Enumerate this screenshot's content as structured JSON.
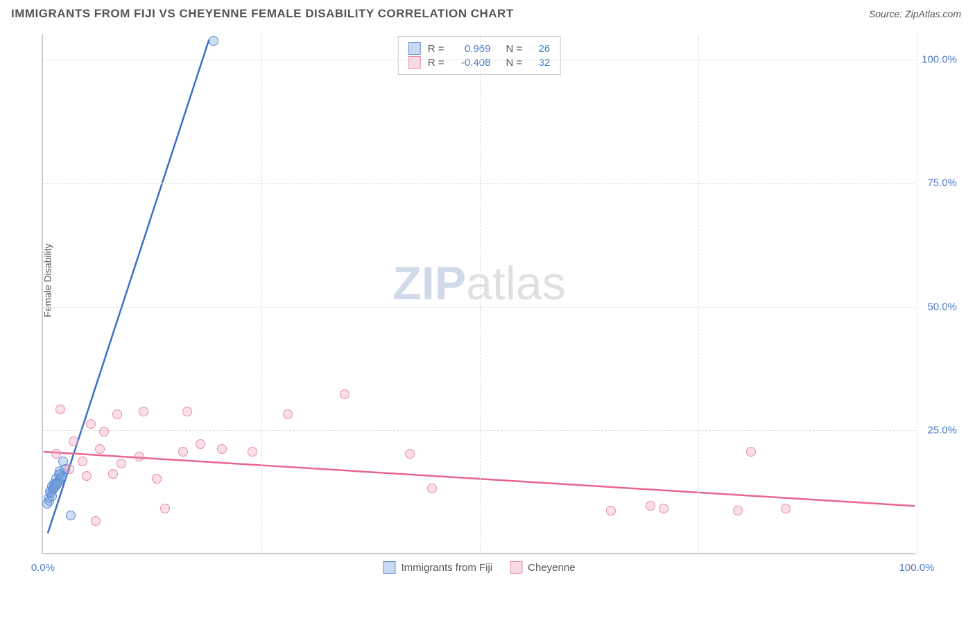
{
  "title": "IMMIGRANTS FROM FIJI VS CHEYENNE FEMALE DISABILITY CORRELATION CHART",
  "source": "Source: ZipAtlas.com",
  "y_axis_label": "Female Disability",
  "watermark_zip": "ZIP",
  "watermark_atlas": "atlas",
  "chart": {
    "type": "scatter",
    "xlim": [
      0,
      100
    ],
    "ylim": [
      0,
      105
    ],
    "x_ticks": [
      {
        "pos": 0,
        "label": "0.0%"
      },
      {
        "pos": 100,
        "label": "100.0%"
      }
    ],
    "x_grid": [
      25,
      50,
      75,
      100
    ],
    "y_ticks": [
      {
        "pos": 25,
        "label": "25.0%"
      },
      {
        "pos": 50,
        "label": "50.0%"
      },
      {
        "pos": 75,
        "label": "75.0%"
      },
      {
        "pos": 100,
        "label": "100.0%"
      }
    ],
    "series": [
      {
        "name": "Immigrants from Fiji",
        "color_fill": "rgba(120,160,220,0.35)",
        "color_stroke": "#5b8dd6",
        "line_color": "#3b6fc4",
        "r": "0.969",
        "n": "26",
        "trend": {
          "x1": 0.5,
          "y1": 4,
          "x2": 19,
          "y2": 104
        },
        "points": [
          [
            1.0,
            13.5
          ],
          [
            1.3,
            14.0
          ],
          [
            0.8,
            12.5
          ],
          [
            1.5,
            15.0
          ],
          [
            2.0,
            16.0
          ],
          [
            0.6,
            11.0
          ],
          [
            1.2,
            13.0
          ],
          [
            1.8,
            14.5
          ],
          [
            0.9,
            12.0
          ],
          [
            1.4,
            13.8
          ],
          [
            2.2,
            15.5
          ],
          [
            1.1,
            12.8
          ],
          [
            1.7,
            14.2
          ],
          [
            0.7,
            10.5
          ],
          [
            2.5,
            17.0
          ],
          [
            1.3,
            13.2
          ],
          [
            1.6,
            14.0
          ],
          [
            2.1,
            15.2
          ],
          [
            1.0,
            11.5
          ],
          [
            1.9,
            16.5
          ],
          [
            0.5,
            10.0
          ],
          [
            1.5,
            13.6
          ],
          [
            2.3,
            18.5
          ],
          [
            3.2,
            7.5
          ],
          [
            19.5,
            103.5
          ],
          [
            1.8,
            15.8
          ]
        ]
      },
      {
        "name": "Cheyenne",
        "color_fill": "rgba(235,150,175,0.3)",
        "color_stroke": "#e88ca8",
        "line_color": "#e8658f",
        "r": "-0.408",
        "n": "32",
        "trend": {
          "x1": 0,
          "y1": 20.5,
          "x2": 100,
          "y2": 9.5
        },
        "points": [
          [
            2.0,
            29.0
          ],
          [
            3.5,
            22.5
          ],
          [
            5.5,
            26.0
          ],
          [
            4.5,
            18.5
          ],
          [
            8.5,
            28.0
          ],
          [
            7.0,
            24.5
          ],
          [
            6.5,
            21.0
          ],
          [
            9.0,
            18.0
          ],
          [
            11.0,
            19.5
          ],
          [
            11.5,
            28.5
          ],
          [
            13.0,
            15.0
          ],
          [
            16.5,
            28.5
          ],
          [
            16.0,
            20.5
          ],
          [
            14.0,
            9.0
          ],
          [
            18.0,
            22.0
          ],
          [
            20.5,
            21.0
          ],
          [
            24.0,
            20.5
          ],
          [
            28.0,
            28.0
          ],
          [
            34.5,
            32.0
          ],
          [
            42.0,
            20.0
          ],
          [
            44.5,
            13.0
          ],
          [
            5.0,
            15.5
          ],
          [
            3.0,
            17.0
          ],
          [
            8.0,
            16.0
          ],
          [
            6.0,
            6.5
          ],
          [
            65.0,
            8.5
          ],
          [
            69.5,
            9.5
          ],
          [
            71.0,
            9.0
          ],
          [
            79.5,
            8.5
          ],
          [
            81.0,
            20.5
          ],
          [
            85.0,
            9.0
          ],
          [
            1.5,
            20.0
          ]
        ]
      }
    ],
    "x_legend": [
      {
        "label": "Immigrants from Fiji",
        "swatch": "sw-blue"
      },
      {
        "label": "Cheyenne",
        "swatch": "sw-pink"
      }
    ]
  }
}
